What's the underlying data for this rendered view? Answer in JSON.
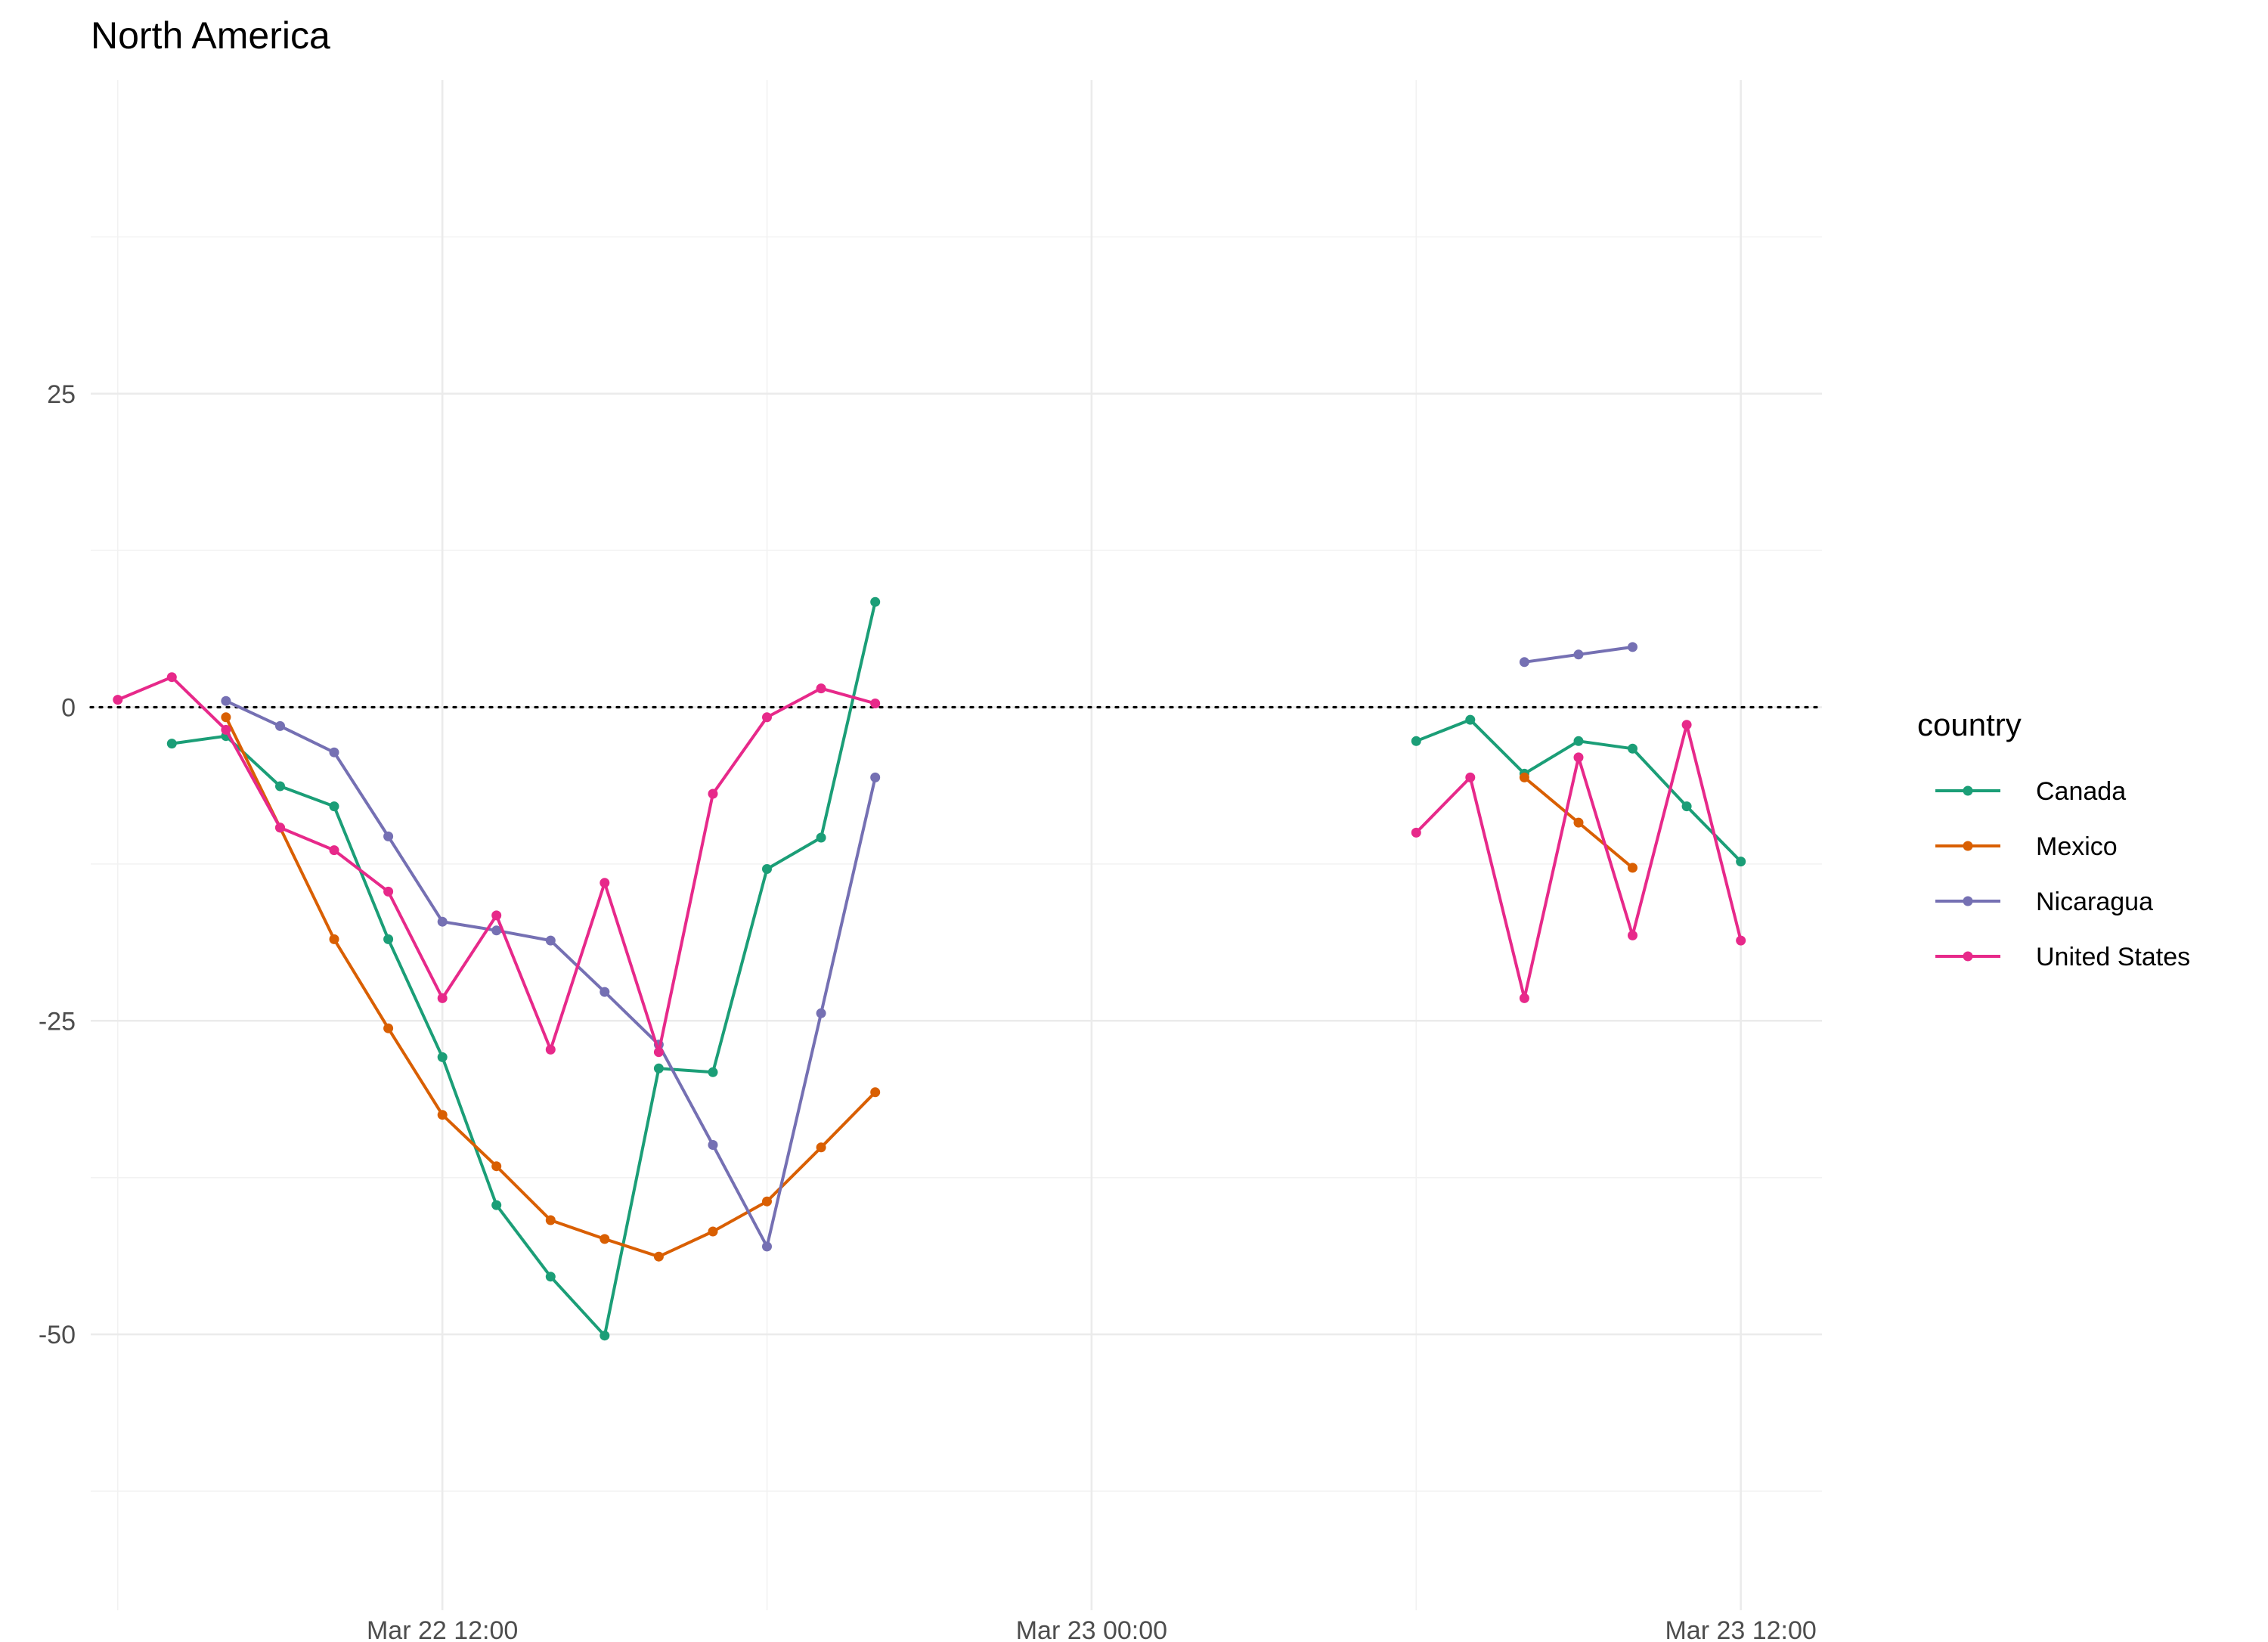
{
  "chart_data": {
    "type": "line",
    "title": "North America",
    "xlabel": "",
    "ylabel": "",
    "x_axis": {
      "kind": "datetime",
      "range": [
        "2020-03-22T05:30",
        "2020-03-23T13:30"
      ],
      "ticks": [
        {
          "x": "2020-03-22T12:00",
          "label": "Mar 22 12:00"
        },
        {
          "x": "2020-03-23T00:00",
          "label": "Mar 23 00:00"
        },
        {
          "x": "2020-03-23T12:00",
          "label": "Mar 23 12:00"
        }
      ],
      "minor_ticks": [
        "2020-03-22T06:00",
        "2020-03-22T18:00",
        "2020-03-23T06:00"
      ]
    },
    "y_axis": {
      "range": [
        -72,
        50
      ],
      "ticks": [
        {
          "y": 25,
          "label": "25"
        },
        {
          "y": 0,
          "label": "0"
        },
        {
          "y": -25,
          "label": "-25"
        },
        {
          "y": -50,
          "label": "-50"
        }
      ],
      "minor_ticks": [
        37.5,
        12.5,
        -12.5,
        -37.5,
        -62.5
      ]
    },
    "reference_line": {
      "y": 0,
      "style": "dotted"
    },
    "grid": true,
    "legend": {
      "title": "country",
      "position": "right"
    },
    "series": [
      {
        "name": "Canada",
        "color": "#1b9e77",
        "points": [
          {
            "x": "2020-03-22T07:00",
            "y": -2.9
          },
          {
            "x": "2020-03-22T08:00",
            "y": -2.3
          },
          {
            "x": "2020-03-22T09:00",
            "y": -6.3
          },
          {
            "x": "2020-03-22T10:00",
            "y": -7.9
          },
          {
            "x": "2020-03-22T11:00",
            "y": -18.5
          },
          {
            "x": "2020-03-22T12:00",
            "y": -27.9
          },
          {
            "x": "2020-03-22T13:00",
            "y": -39.7
          },
          {
            "x": "2020-03-22T14:00",
            "y": -45.4
          },
          {
            "x": "2020-03-22T15:00",
            "y": -50.1
          },
          {
            "x": "2020-03-22T16:00",
            "y": -28.8
          },
          {
            "x": "2020-03-22T17:00",
            "y": -29.1
          },
          {
            "x": "2020-03-22T18:00",
            "y": -12.9
          },
          {
            "x": "2020-03-22T19:00",
            "y": -10.4
          },
          {
            "x": "2020-03-22T20:00",
            "y": 8.4
          },
          {
            "x": "2020-03-23T06:00",
            "y": -2.7
          },
          {
            "x": "2020-03-23T07:00",
            "y": -1.0
          },
          {
            "x": "2020-03-23T08:00",
            "y": -5.3
          },
          {
            "x": "2020-03-23T09:00",
            "y": -2.7
          },
          {
            "x": "2020-03-23T10:00",
            "y": -3.3
          },
          {
            "x": "2020-03-23T11:00",
            "y": -7.9
          },
          {
            "x": "2020-03-23T12:00",
            "y": -12.3
          }
        ]
      },
      {
        "name": "Mexico",
        "color": "#d95f02",
        "points": [
          {
            "x": "2020-03-22T08:00",
            "y": -0.8
          },
          {
            "x": "2020-03-22T09:00",
            "y": -9.6
          },
          {
            "x": "2020-03-22T10:00",
            "y": -18.5
          },
          {
            "x": "2020-03-22T11:00",
            "y": -25.6
          },
          {
            "x": "2020-03-22T12:00",
            "y": -32.5
          },
          {
            "x": "2020-03-22T13:00",
            "y": -36.6
          },
          {
            "x": "2020-03-22T14:00",
            "y": -40.9
          },
          {
            "x": "2020-03-22T15:00",
            "y": -42.4
          },
          {
            "x": "2020-03-22T16:00",
            "y": -43.8
          },
          {
            "x": "2020-03-22T17:00",
            "y": -41.8
          },
          {
            "x": "2020-03-22T18:00",
            "y": -39.4
          },
          {
            "x": "2020-03-22T19:00",
            "y": -35.1
          },
          {
            "x": "2020-03-22T20:00",
            "y": -30.7
          },
          {
            "x": "2020-03-23T08:00",
            "y": -5.6
          },
          {
            "x": "2020-03-23T09:00",
            "y": -9.2
          },
          {
            "x": "2020-03-23T10:00",
            "y": -12.8
          }
        ]
      },
      {
        "name": "Nicaragua",
        "color": "#7570b3",
        "points": [
          {
            "x": "2020-03-22T08:00",
            "y": 0.5
          },
          {
            "x": "2020-03-22T09:00",
            "y": -1.5
          },
          {
            "x": "2020-03-22T10:00",
            "y": -3.6
          },
          {
            "x": "2020-03-22T11:00",
            "y": -10.3
          },
          {
            "x": "2020-03-22T12:00",
            "y": -17.1
          },
          {
            "x": "2020-03-22T13:00",
            "y": -17.8
          },
          {
            "x": "2020-03-22T14:00",
            "y": -18.6
          },
          {
            "x": "2020-03-22T15:00",
            "y": -22.7
          },
          {
            "x": "2020-03-22T16:00",
            "y": -26.9
          },
          {
            "x": "2020-03-22T17:00",
            "y": -34.9
          },
          {
            "x": "2020-03-22T18:00",
            "y": -43.0
          },
          {
            "x": "2020-03-22T19:00",
            "y": -24.4
          },
          {
            "x": "2020-03-22T20:00",
            "y": -5.6
          },
          {
            "x": "2020-03-23T08:00",
            "y": 3.6
          },
          {
            "x": "2020-03-23T09:00",
            "y": 4.2
          },
          {
            "x": "2020-03-23T10:00",
            "y": 4.8
          }
        ]
      },
      {
        "name": "United States",
        "color": "#e7298a",
        "points": [
          {
            "x": "2020-03-22T06:00",
            "y": 0.6
          },
          {
            "x": "2020-03-22T07:00",
            "y": 2.4
          },
          {
            "x": "2020-03-22T08:00",
            "y": -1.8
          },
          {
            "x": "2020-03-22T09:00",
            "y": -9.6
          },
          {
            "x": "2020-03-22T10:00",
            "y": -11.4
          },
          {
            "x": "2020-03-22T11:00",
            "y": -14.7
          },
          {
            "x": "2020-03-22T12:00",
            "y": -23.2
          },
          {
            "x": "2020-03-22T13:00",
            "y": -16.6
          },
          {
            "x": "2020-03-22T14:00",
            "y": -27.3
          },
          {
            "x": "2020-03-22T15:00",
            "y": -14.0
          },
          {
            "x": "2020-03-22T16:00",
            "y": -27.5
          },
          {
            "x": "2020-03-22T17:00",
            "y": -6.9
          },
          {
            "x": "2020-03-22T18:00",
            "y": -0.8
          },
          {
            "x": "2020-03-22T19:00",
            "y": 1.5
          },
          {
            "x": "2020-03-22T20:00",
            "y": 0.3
          },
          {
            "x": "2020-03-23T06:00",
            "y": -10.0
          },
          {
            "x": "2020-03-23T07:00",
            "y": -5.6
          },
          {
            "x": "2020-03-23T08:00",
            "y": -23.2
          },
          {
            "x": "2020-03-23T09:00",
            "y": -4.0
          },
          {
            "x": "2020-03-23T10:00",
            "y": -18.2
          },
          {
            "x": "2020-03-23T11:00",
            "y": -1.4
          },
          {
            "x": "2020-03-23T12:00",
            "y": -18.6
          }
        ]
      }
    ]
  }
}
